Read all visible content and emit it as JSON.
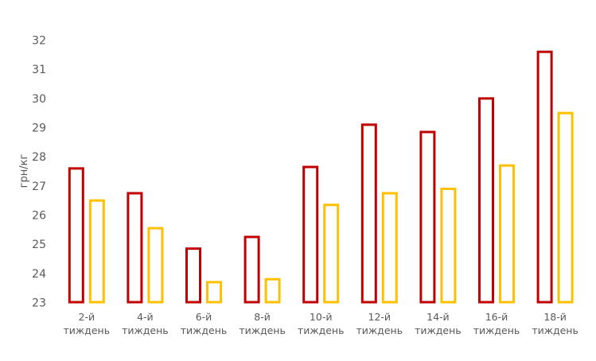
{
  "chart_data": {
    "type": "bar",
    "title": "",
    "xlabel": "",
    "ylabel": "грн/кг",
    "ylim": [
      23,
      32
    ],
    "yticks": [
      "23",
      "24",
      "25",
      "26",
      "27",
      "28",
      "29",
      "30",
      "31",
      "32"
    ],
    "grid": false,
    "legend": "none",
    "bar_style": "outline",
    "categories": [
      [
        "2-й",
        "тиждень"
      ],
      [
        "4-й",
        "тиждень"
      ],
      [
        "6-й",
        "тиждень"
      ],
      [
        "8-й",
        "тиждень"
      ],
      [
        "10-й",
        "тиждень"
      ],
      [
        "12-й",
        "тиждень"
      ],
      [
        "14-й",
        "тиждень"
      ],
      [
        "16-й",
        "тиждень"
      ],
      [
        "18-й",
        "тиждень"
      ]
    ],
    "series": [
      {
        "color": "#C00000",
        "values": [
          27.6,
          26.75,
          24.85,
          25.25,
          27.65,
          29.1,
          28.85,
          30.0,
          31.6
        ]
      },
      {
        "color": "#FFC000",
        "values": [
          26.5,
          25.55,
          23.7,
          23.8,
          26.35,
          26.75,
          26.9,
          27.7,
          29.5
        ]
      }
    ]
  }
}
